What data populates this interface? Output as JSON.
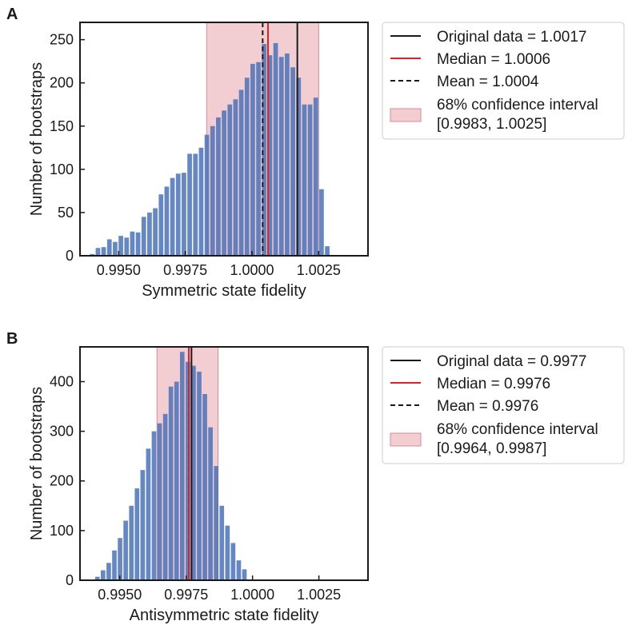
{
  "chart_data": [
    {
      "panel_label": "A",
      "type": "bar",
      "xlabel": "Symmetric state fidelity",
      "ylabel": "Number of bootstraps",
      "xlim": [
        0.99355,
        1.00435
      ],
      "ylim": [
        0,
        270
      ],
      "xticks": [
        0.995,
        0.9975,
        1.0,
        1.0025
      ],
      "xtick_labels": [
        "0.9950",
        "0.9975",
        "1.0000",
        "1.0025"
      ],
      "yticks": [
        0,
        50,
        100,
        150,
        200,
        250
      ],
      "ytick_labels": [
        "0",
        "50",
        "100",
        "150",
        "200",
        "250"
      ],
      "bin_start": 0.9939,
      "bin_width": 0.000215,
      "values": [
        2,
        9,
        10,
        19,
        16,
        23,
        21,
        28,
        27,
        45,
        50,
        55,
        71,
        80,
        90,
        95,
        96,
        118,
        118,
        125,
        140,
        150,
        160,
        168,
        175,
        181,
        192,
        206,
        222,
        224,
        245,
        232,
        246,
        230,
        234,
        218,
        206,
        175,
        175,
        183,
        77,
        11
      ],
      "original_data": 1.0017,
      "median": 1.0006,
      "mean": 1.0004,
      "ci": [
        0.9983,
        1.0025
      ],
      "legend": {
        "original": "Original data = 1.0017",
        "median": "Median = 1.0006",
        "mean": "Mean = 1.0004",
        "ci_line1": "68% confidence interval",
        "ci_line2": "[0.9983, 1.0025]"
      }
    },
    {
      "panel_label": "B",
      "type": "bar",
      "xlabel": "Antisymmetric state fidelity",
      "ylabel": "Number of bootstraps",
      "xlim": [
        0.9935,
        1.00435
      ],
      "ylim": [
        0,
        470
      ],
      "xticks": [
        0.995,
        0.9975,
        1.0,
        1.0025
      ],
      "xtick_labels": [
        "0.9950",
        "0.9975",
        "1.0000",
        "1.0025"
      ],
      "yticks": [
        0,
        100,
        200,
        300,
        400
      ],
      "ytick_labels": [
        "0",
        "100",
        "200",
        "300",
        "400"
      ],
      "bin_start": 0.99405,
      "bin_width": 0.000213,
      "values": [
        7,
        20,
        35,
        60,
        85,
        120,
        150,
        185,
        222,
        265,
        300,
        316,
        335,
        390,
        400,
        460,
        440,
        432,
        420,
        375,
        308,
        230,
        150,
        110,
        75,
        40,
        22
      ],
      "original_data": 0.9977,
      "median": 0.9976,
      "mean": 0.9976,
      "ci": [
        0.9964,
        0.9987
      ],
      "legend": {
        "original": "Original data = 0.9977",
        "median": "Median = 0.9976",
        "mean": "Mean = 0.9976",
        "ci_line1": "68% confidence interval",
        "ci_line2": "[0.9964, 0.9987]"
      }
    }
  ],
  "colors": {
    "bar": "#4a72b8",
    "original_line": "#1a1a1a",
    "median_line": "#d62728",
    "mean_line": "#1a1a1a",
    "ci_fill": "#e7a6ae"
  }
}
